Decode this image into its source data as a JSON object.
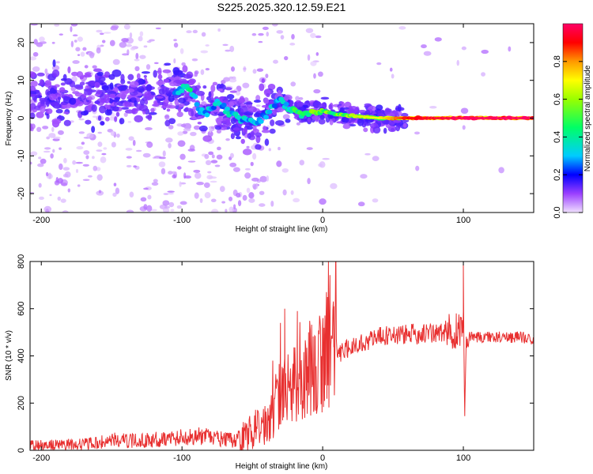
{
  "title": "S225.2025.320.12.59.E21",
  "chart_data": [
    {
      "type": "heatmap",
      "title": "S225.2025.320.12.59.E21",
      "xlabel": "Height of straight line (km)",
      "ylabel": "Frequency (Hz)",
      "xlim": [
        -208,
        150
      ],
      "ylim": [
        -25,
        25
      ],
      "xticks": [
        -200,
        -100,
        0,
        100
      ],
      "yticks": [
        -20,
        -10,
        0,
        10,
        20
      ],
      "colorbar": {
        "label": "Normalized spectral amplitude",
        "range": [
          0.0,
          1.0
        ],
        "ticks": [
          "0.0",
          "0.2",
          "0.4",
          "0.6",
          "0.8"
        ],
        "colors": [
          "#e8ccff",
          "#7f00ff",
          "#0000ff",
          "#00ccff",
          "#00ff66",
          "#66ff00",
          "#ffff00",
          "#ff9900",
          "#ff0000",
          "#ff0066"
        ]
      },
      "ridge": [
        {
          "x": -150,
          "y": 6,
          "a": 0.2
        },
        {
          "x": -125,
          "y": 6,
          "a": 0.22
        },
        {
          "x": -110,
          "y": 7,
          "a": 0.3
        },
        {
          "x": -95,
          "y": 8,
          "a": 0.4
        },
        {
          "x": -85,
          "y": 1,
          "a": 0.3
        },
        {
          "x": -75,
          "y": 4,
          "a": 0.32
        },
        {
          "x": -60,
          "y": 0,
          "a": 0.35
        },
        {
          "x": -45,
          "y": -1,
          "a": 0.3
        },
        {
          "x": -30,
          "y": 5,
          "a": 0.35
        },
        {
          "x": -25,
          "y": 3,
          "a": 0.4
        },
        {
          "x": -15,
          "y": 1,
          "a": 0.5
        },
        {
          "x": 0,
          "y": 2,
          "a": 0.55
        },
        {
          "x": 10,
          "y": 1,
          "a": 0.55
        },
        {
          "x": 40,
          "y": 0,
          "a": 0.65
        },
        {
          "x": 60,
          "y": 0,
          "a": 0.85
        },
        {
          "x": 80,
          "y": 0,
          "a": 0.9
        },
        {
          "x": 100,
          "y": 0,
          "a": 0.95
        },
        {
          "x": 150,
          "y": 0,
          "a": 0.95
        }
      ]
    },
    {
      "type": "line",
      "xlabel": "Height of straight line (km)",
      "ylabel": "SNR (10 * v/v)",
      "xlim": [
        -208,
        150
      ],
      "ylim": [
        0,
        800
      ],
      "xticks": [
        -200,
        -100,
        0,
        100
      ],
      "yticks": [
        0,
        200,
        400,
        600,
        800
      ],
      "color": "#e83030",
      "series": [
        {
          "name": "SNR",
          "x": [
            -208,
            -190,
            -175,
            -160,
            -150,
            -140,
            -130,
            -120,
            -110,
            -100,
            -90,
            -80,
            -70,
            -60,
            -55,
            -50,
            -45,
            -40,
            -35,
            -30,
            -28,
            -25,
            -22,
            -20,
            -18,
            -15,
            -10,
            -5,
            0,
            5,
            10,
            15,
            20,
            30,
            40,
            50,
            60,
            70,
            80,
            90,
            95,
            98,
            100,
            101,
            102,
            105,
            110,
            120,
            130,
            140,
            150
          ],
          "values": [
            20,
            22,
            25,
            30,
            45,
            40,
            40,
            45,
            50,
            55,
            60,
            55,
            45,
            40,
            60,
            80,
            100,
            120,
            150,
            210,
            270,
            250,
            230,
            280,
            260,
            300,
            330,
            360,
            380,
            390,
            400,
            420,
            440,
            460,
            480,
            490,
            490,
            495,
            495,
            500,
            510,
            520,
            530,
            150,
            420,
            490,
            480,
            480,
            480,
            480,
            470
          ]
        }
      ],
      "spikes": [
        {
          "x": -30,
          "y": 540
        },
        {
          "x": -27,
          "y": 600
        },
        {
          "x": -18,
          "y": 590
        },
        {
          "x": -10,
          "y": 500
        },
        {
          "x": 8,
          "y": 610
        },
        {
          "x": 100,
          "y": 790
        },
        {
          "x": 101,
          "y": 145
        },
        {
          "x": 95,
          "y": 580
        }
      ]
    }
  ]
}
